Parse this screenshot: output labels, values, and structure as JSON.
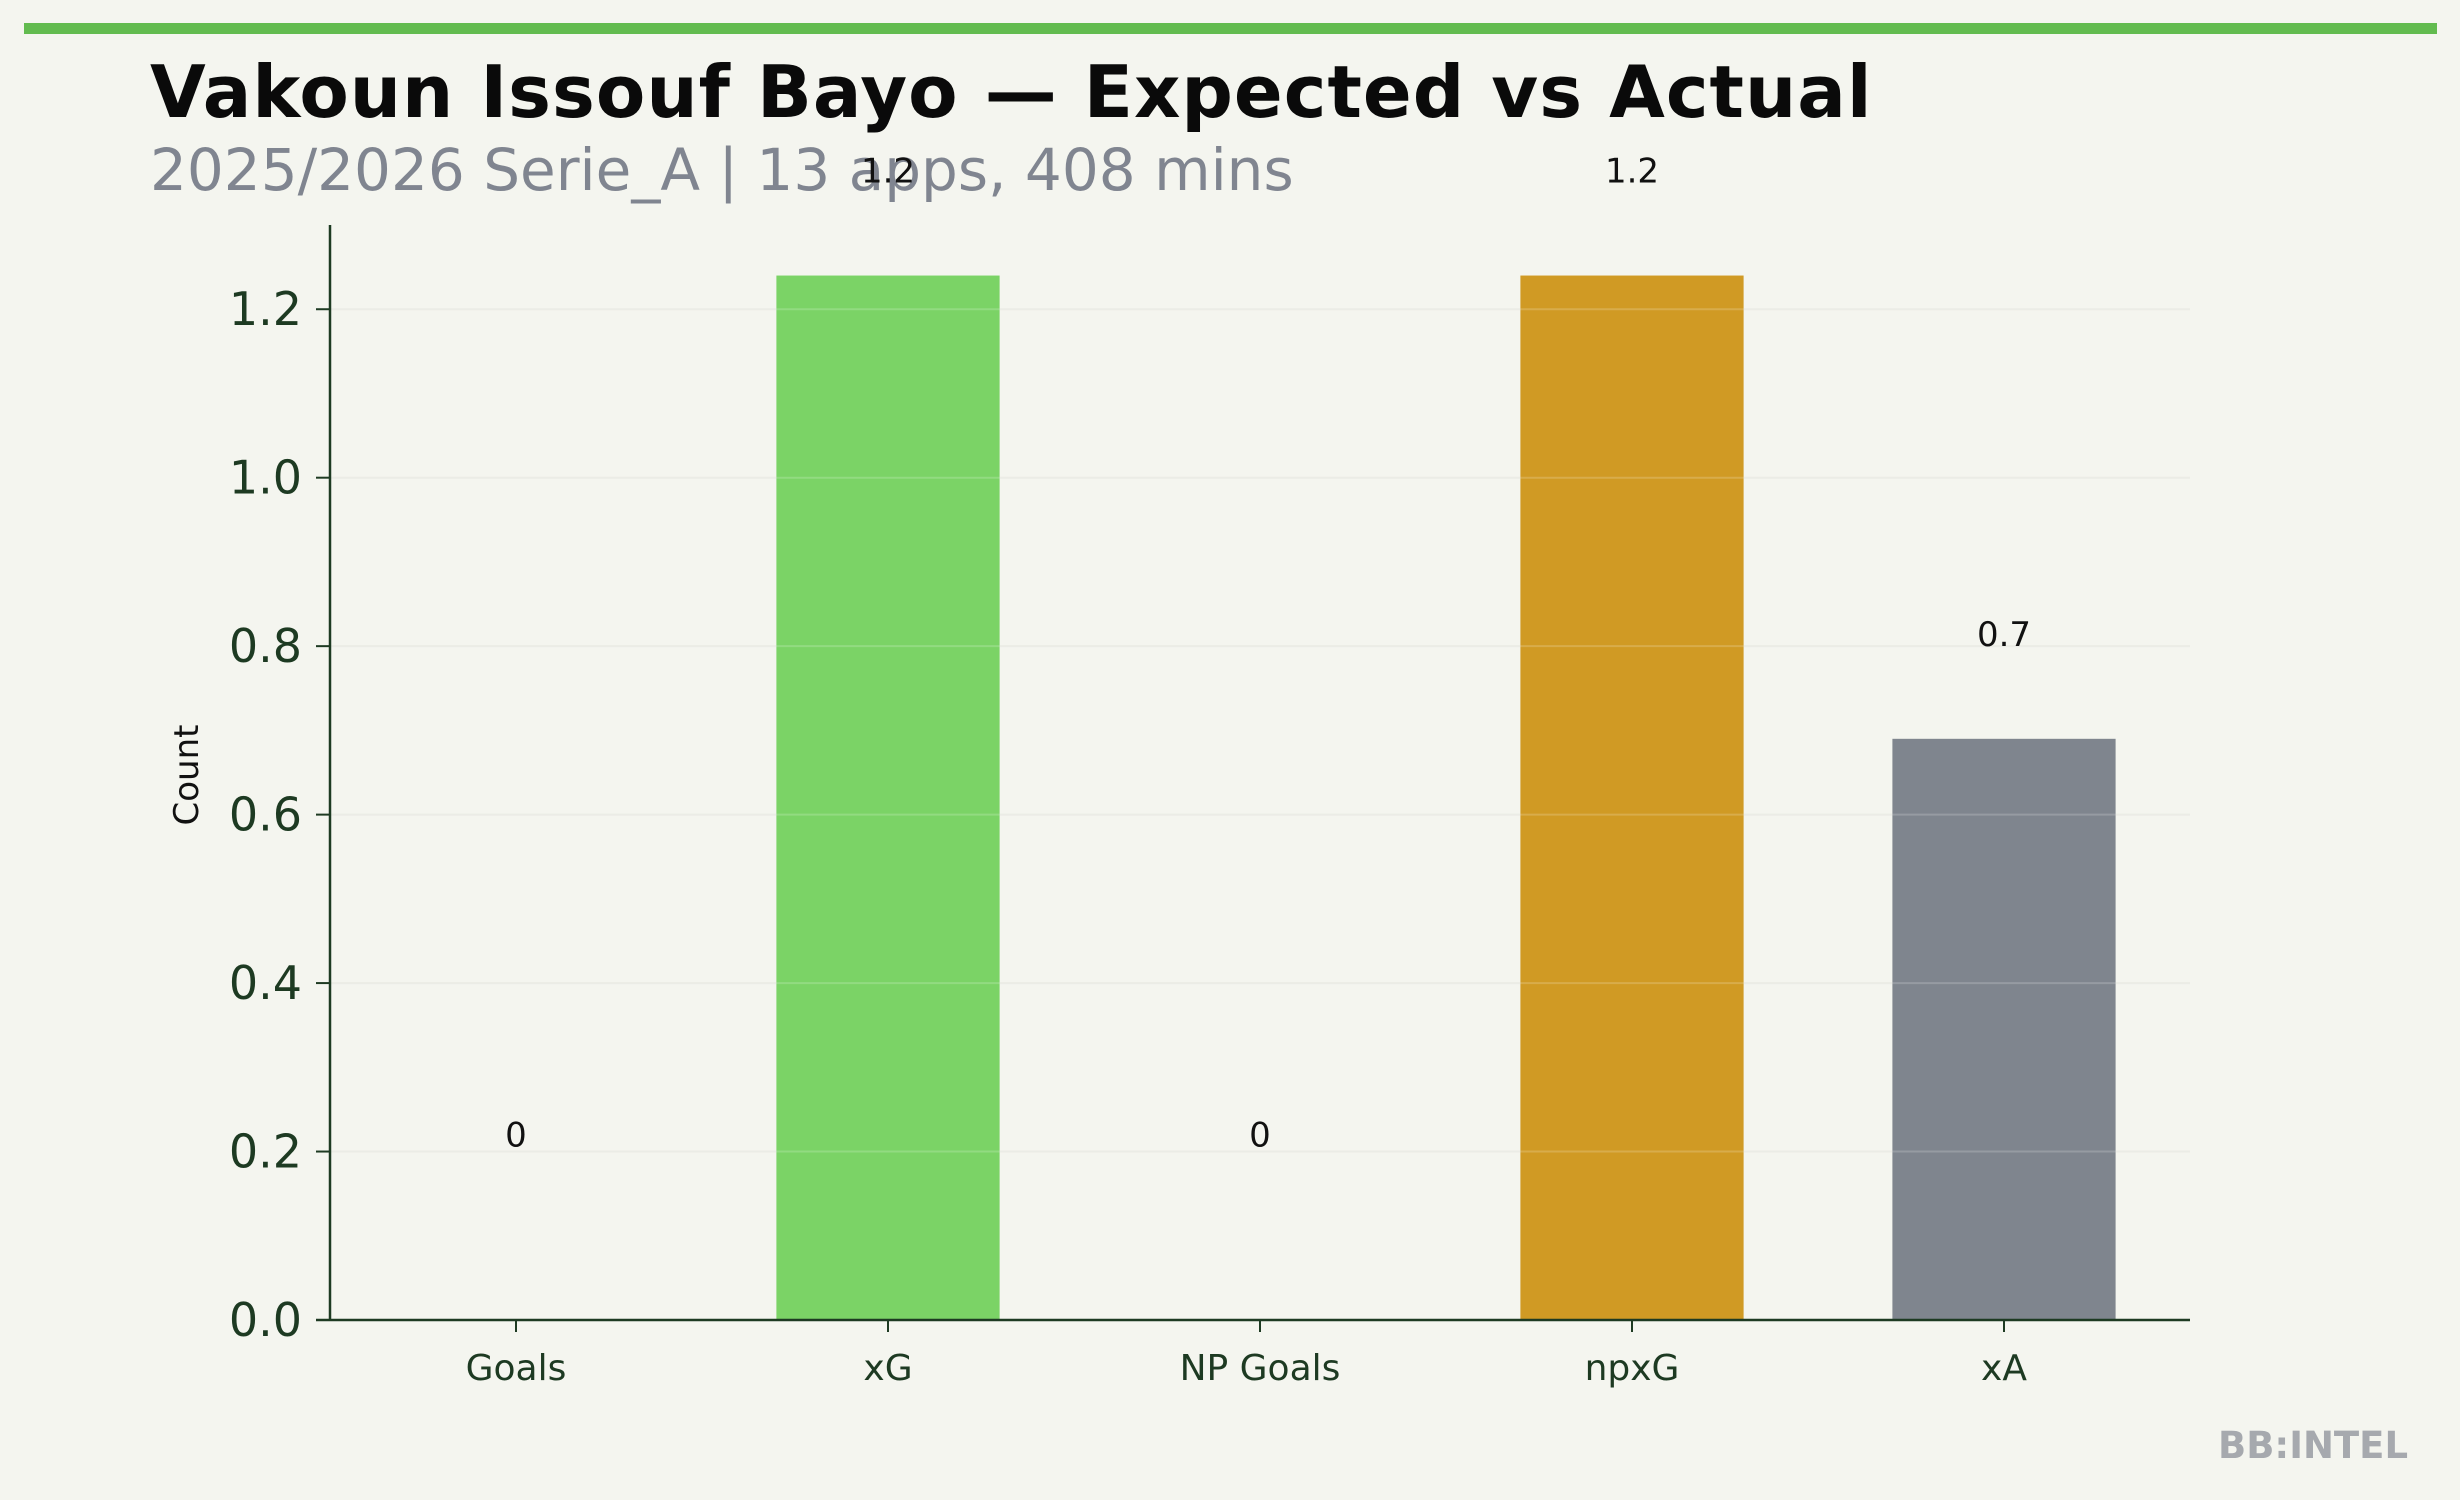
{
  "header": {
    "title": "Vakoun Issouf Bayo — Expected vs Actual",
    "subtitle": "2025/2026 Serie_A | 13 apps, 408 mins",
    "accent_color": "#62bb4f"
  },
  "watermark": "BB:INTEL",
  "chart_data": {
    "type": "bar",
    "title": "Vakoun Issouf Bayo — Expected vs Actual",
    "subtitle": "2025/2026 Serie_A | 13 apps, 408 mins",
    "xlabel": "",
    "ylabel": "Count",
    "categories": [
      "Goals",
      "xG",
      "NP Goals",
      "npxG",
      "xA"
    ],
    "values": [
      0,
      1.24,
      0,
      1.24,
      0.69
    ],
    "data_labels": [
      "0",
      "1.2",
      "0",
      "1.2",
      "0.7"
    ],
    "colors": [
      "#7bd366",
      "#7bd366",
      "#d09a24",
      "#d09a24",
      "#7f858e"
    ],
    "ylim": [
      0,
      1.3
    ],
    "yticks": [
      0.0,
      0.2,
      0.4,
      0.6,
      0.8,
      1.0,
      1.2
    ],
    "ytick_labels": [
      "0.0",
      "0.2",
      "0.4",
      "0.6",
      "0.8",
      "1.0",
      "1.2"
    ],
    "grid": true,
    "legend": "none"
  }
}
